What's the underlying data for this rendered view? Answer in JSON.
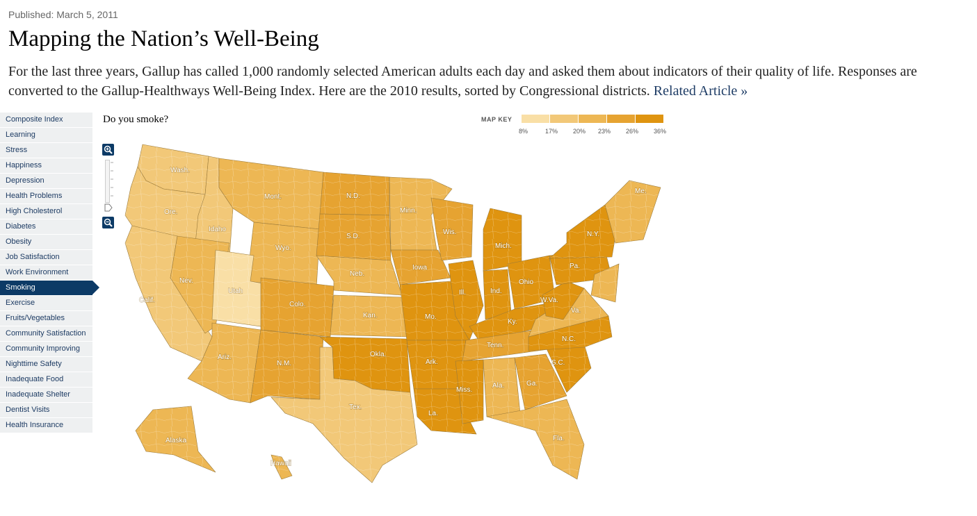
{
  "published": "Published: March 5, 2011",
  "title": "Mapping the Nation’s Well-Being",
  "intro": "For the last three years, Gallup has called 1,000 randomly selected American adults each day and asked them about indicators of their quality of life. Responses are converted to the Gallup-Healthways Well-Being Index. Here are the 2010 results, sorted by Congressional districts.",
  "related_link": "Related Article »",
  "sidebar": {
    "items": [
      "Composite Index",
      "Learning",
      "Stress",
      "Happiness",
      "Depression",
      "Health Problems",
      "High Cholesterol",
      "Diabetes",
      "Obesity",
      "Job Satisfaction",
      "Work Environment",
      "Smoking",
      "Exercise",
      "Fruits/Vegetables",
      "Community Satisfaction",
      "Community Improving",
      "Nighttime Safety",
      "Inadequate Food",
      "Inadequate Shelter",
      "Dentist Visits",
      "Health Insurance"
    ],
    "active": "Smoking"
  },
  "question": "Do you smoke?",
  "map_key": {
    "label": "MAP KEY",
    "ticks": [
      "8%",
      "17%",
      "20%",
      "23%",
      "26%",
      "36%"
    ],
    "colors": [
      "#f9dfa6",
      "#f2c878",
      "#edb754",
      "#e6a331",
      "#df9410"
    ]
  },
  "map": {
    "state_labels": [
      "Wash.",
      "Ore.",
      "Calif.",
      "Idaho",
      "Mont.",
      "Wyo.",
      "Nev.",
      "Utah",
      "Ariz.",
      "Colo.",
      "N.M.",
      "N.D.",
      "S.D.",
      "Neb.",
      "Kan.",
      "Okla.",
      "Tex.",
      "Minn.",
      "Iowa",
      "Mo.",
      "Ark.",
      "La.",
      "Wis.",
      "Ill.",
      "Mich.",
      "Ind.",
      "Ohio",
      "Ky.",
      "Tenn.",
      "Miss.",
      "Ala.",
      "Ga.",
      "Fla.",
      "S.C.",
      "N.C.",
      "Va.",
      "W.Va.",
      "Pa.",
      "N.Y.",
      "Me.",
      "Alaska",
      "Hawaii"
    ]
  }
}
